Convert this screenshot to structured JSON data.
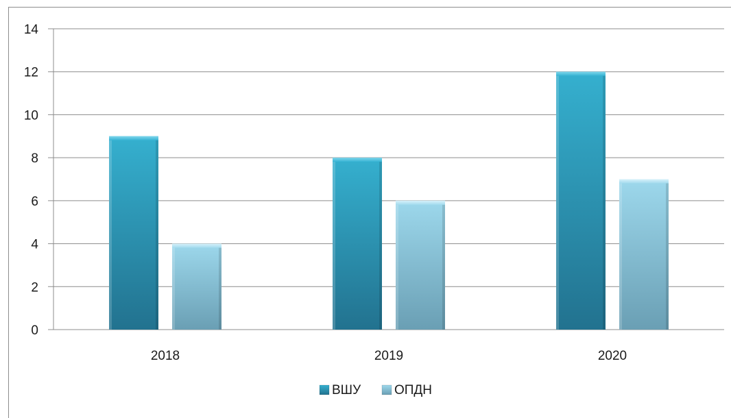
{
  "chart_data": {
    "type": "bar",
    "categories": [
      "2018",
      "2019",
      "2020"
    ],
    "series": [
      {
        "name": "ВШУ",
        "values": [
          9,
          8,
          12
        ],
        "color": "#2e9bbb"
      },
      {
        "name": "ОПДН",
        "values": [
          4,
          6,
          7
        ],
        "color": "#87c6dd"
      }
    ],
    "y_ticks": [
      "0",
      "2",
      "4",
      "6",
      "8",
      "10",
      "12",
      "14"
    ],
    "ylim": [
      0,
      14
    ],
    "grid": true,
    "legend_position": "bottom-center"
  }
}
